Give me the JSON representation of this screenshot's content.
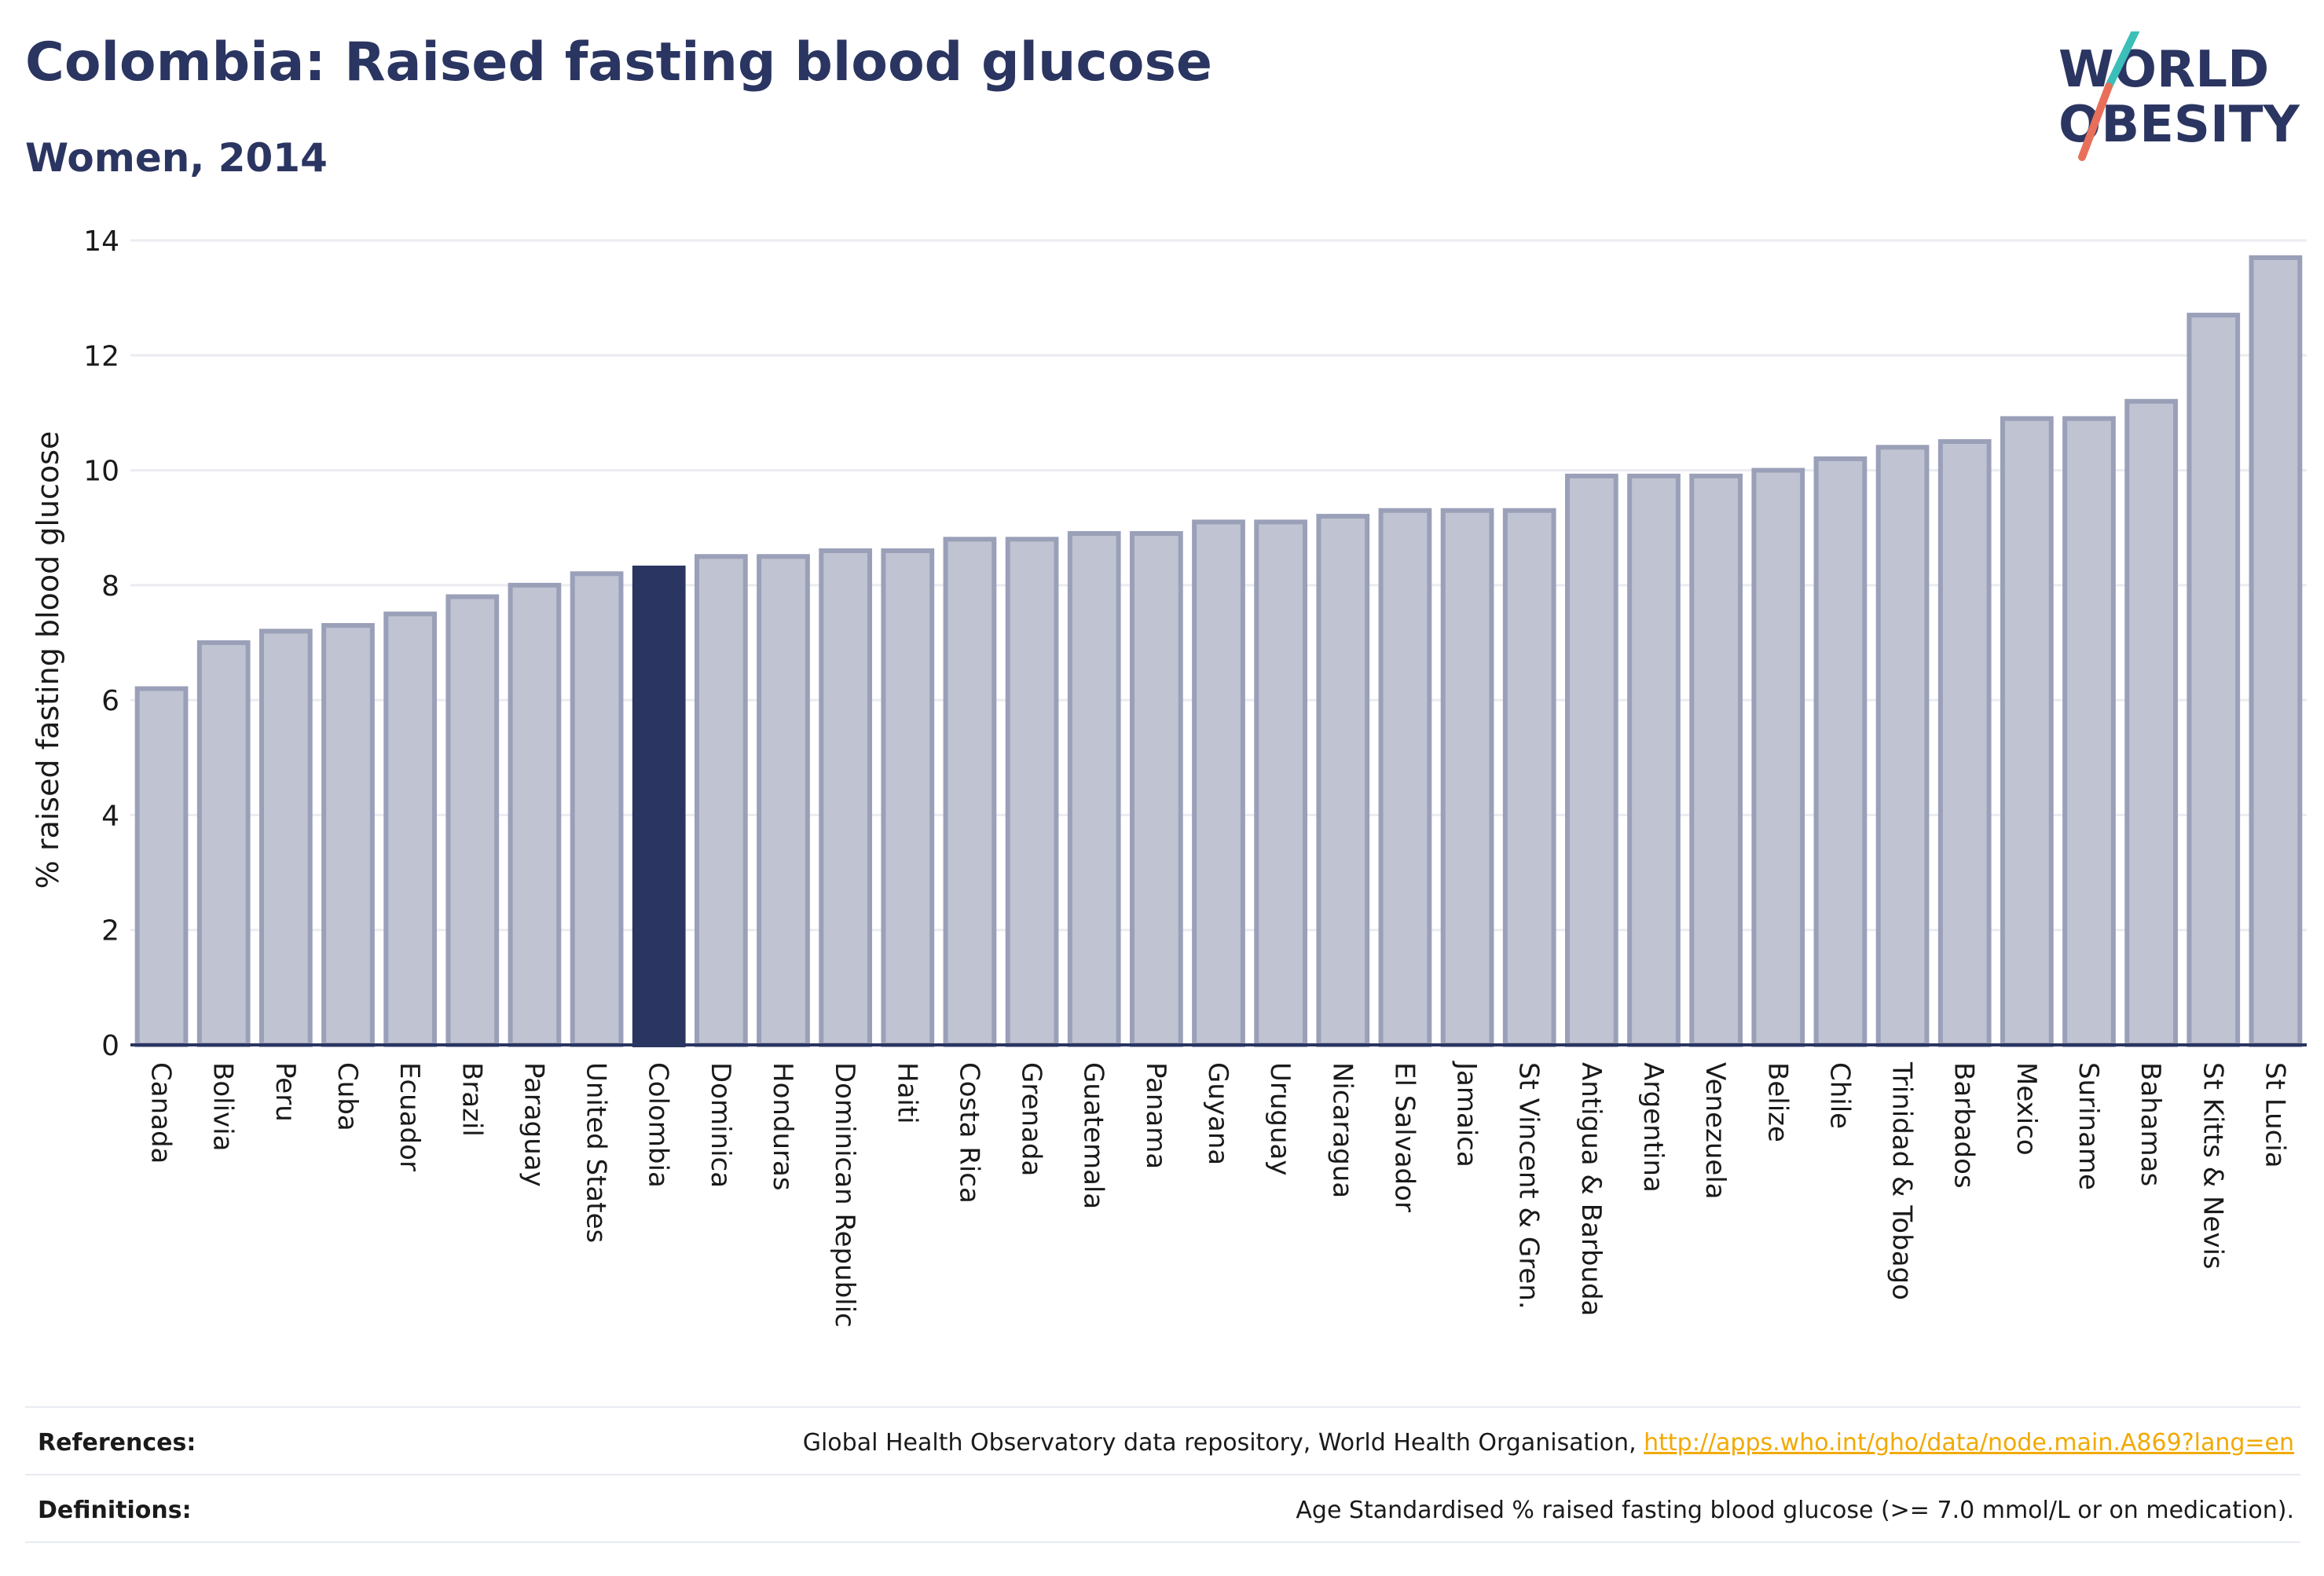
{
  "header": {
    "title": "Colombia: Raised fasting blood glucose",
    "subtitle": "Women, 2014"
  },
  "logo": {
    "line1": "WORLD",
    "line2": "OBESITY",
    "icon": "slash-mark-icon"
  },
  "colors": {
    "bar_fill": "#c0c3d1",
    "bar_stroke": "#9aa0b8",
    "highlight": "#2b3561",
    "grid": "#eaecf1",
    "axis": "#2b3561",
    "text": "#1a1a1a",
    "logo_teal": "#3bbfb8",
    "logo_coral": "#e8705b",
    "link": "#f2a900"
  },
  "chart_data": {
    "type": "bar",
    "title": "",
    "xlabel": "",
    "ylabel": "% raised fasting blood glucose",
    "ylim": [
      0,
      14
    ],
    "yticks": [
      0,
      2,
      4,
      6,
      8,
      10,
      12,
      14
    ],
    "grid": true,
    "highlight": "Colombia",
    "categories": [
      "Canada",
      "Bolivia",
      "Peru",
      "Cuba",
      "Ecuador",
      "Brazil",
      "Paraguay",
      "United States",
      "Colombia",
      "Dominica",
      "Honduras",
      "Dominican Republic",
      "Haiti",
      "Costa Rica",
      "Grenada",
      "Guatemala",
      "Panama",
      "Guyana",
      "Uruguay",
      "Nicaragua",
      "El Salvador",
      "Jamaica",
      "St Vincent & Gren.",
      "Antigua & Barbuda",
      "Argentina",
      "Venezuela",
      "Belize",
      "Chile",
      "Trinidad & Tobago",
      "Barbados",
      "Mexico",
      "Suriname",
      "Bahamas",
      "St Kitts & Nevis",
      "St Lucia"
    ],
    "values": [
      6.2,
      7.0,
      7.2,
      7.3,
      7.5,
      7.8,
      8.0,
      8.2,
      8.3,
      8.5,
      8.5,
      8.6,
      8.6,
      8.8,
      8.8,
      8.9,
      8.9,
      9.1,
      9.1,
      9.2,
      9.3,
      9.3,
      9.3,
      9.9,
      9.9,
      9.9,
      10.0,
      10.2,
      10.4,
      10.5,
      10.9,
      10.9,
      11.2,
      12.7,
      13.7
    ]
  },
  "footer": {
    "references_label": "References:",
    "references_text": "Global Health Observatory data repository, World Health Organisation, ",
    "references_link": "http://apps.who.int/gho/data/node.main.A869?lang=en",
    "definitions_label": "Definitions:",
    "definitions_text": "Age Standardised % raised fasting blood glucose (>= 7.0 mmol/L or on medication)."
  }
}
